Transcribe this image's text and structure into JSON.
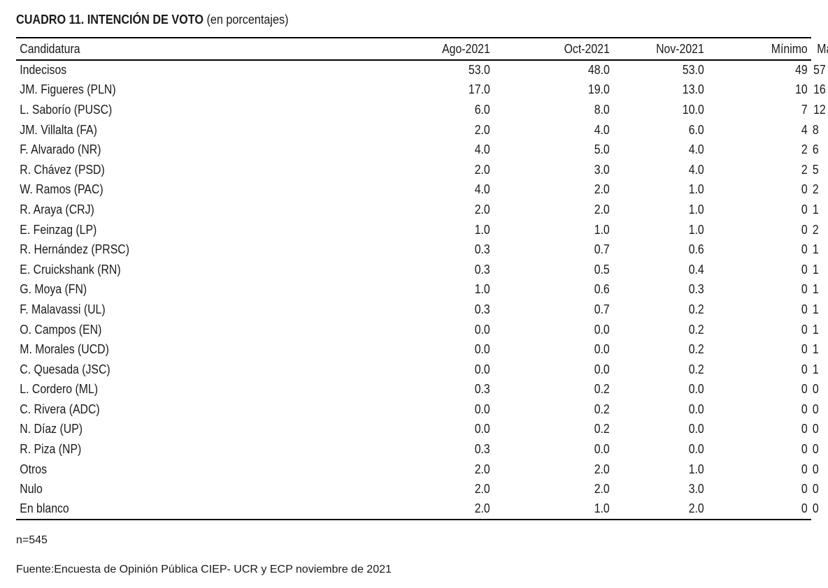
{
  "title": {
    "bold": "CUADRO 11. INTENCIÓN DE VOTO",
    "normal": "(en porcentajes)"
  },
  "table": {
    "headers": [
      "Candidatura",
      "Ago-2021",
      "Oct-2021",
      "Nov-2021",
      "Mínimo",
      "Máximo"
    ],
    "rows": [
      [
        "Indecisos",
        "53.0",
        "48.0",
        "53.0",
        "49",
        "57"
      ],
      [
        "JM. Figueres (PLN)",
        "17.0",
        "19.0",
        "13.0",
        "10",
        "16"
      ],
      [
        "L. Saborío (PUSC)",
        "6.0",
        "8.0",
        "10.0",
        "7",
        "12"
      ],
      [
        "JM. Villalta (FA)",
        "2.0",
        "4.0",
        "6.0",
        "4",
        "8"
      ],
      [
        "F. Alvarado (NR)",
        "4.0",
        "5.0",
        "4.0",
        "2",
        "6"
      ],
      [
        "R. Chávez (PSD)",
        "2.0",
        "3.0",
        "4.0",
        "2",
        "5"
      ],
      [
        "W. Ramos (PAC)",
        "4.0",
        "2.0",
        "1.0",
        "0",
        "2"
      ],
      [
        "R. Araya (CRJ)",
        "2.0",
        "2.0",
        "1.0",
        "0",
        "1"
      ],
      [
        "E. Feinzag (LP)",
        "1.0",
        "1.0",
        "1.0",
        "0",
        "2"
      ],
      [
        "R. Hernández (PRSC)",
        "0.3",
        "0.7",
        "0.6",
        "0",
        "1"
      ],
      [
        "E. Cruickshank (RN)",
        "0.3",
        "0.5",
        "0.4",
        "0",
        "1"
      ],
      [
        "G. Moya (FN)",
        "1.0",
        "0.6",
        "0.3",
        "0",
        "1"
      ],
      [
        "F. Malavassi (UL)",
        "0.3",
        "0.7",
        "0.2",
        "0",
        "1"
      ],
      [
        "O. Campos (EN)",
        "0.0",
        "0.0",
        "0.2",
        "0",
        "1"
      ],
      [
        "M. Morales (UCD)",
        "0.0",
        "0.0",
        "0.2",
        "0",
        "1"
      ],
      [
        "C. Quesada (JSC)",
        "0.0",
        "0.0",
        "0.2",
        "0",
        "1"
      ],
      [
        "L. Cordero (ML)",
        "0.3",
        "0.2",
        "0.0",
        "0",
        "0"
      ],
      [
        "C. Rivera (ADC)",
        "0.0",
        "0.2",
        "0.0",
        "0",
        "0"
      ],
      [
        "N. Díaz (UP)",
        "0.0",
        "0.2",
        "0.0",
        "0",
        "0"
      ],
      [
        "R. Piza (NP)",
        "0.3",
        "0.0",
        "0.0",
        "0",
        "0"
      ],
      [
        "Otros",
        "2.0",
        "2.0",
        "1.0",
        "0",
        "0"
      ],
      [
        "Nulo",
        "2.0",
        "2.0",
        "3.0",
        "0",
        "0"
      ],
      [
        "En blanco",
        "2.0",
        "1.0",
        "2.0",
        "0",
        "0"
      ]
    ]
  },
  "notes": {
    "sample": "n=545",
    "source": "Fuente:Encuesta de Opinión Pública CIEP- UCR y ECP noviembre de 2021"
  }
}
